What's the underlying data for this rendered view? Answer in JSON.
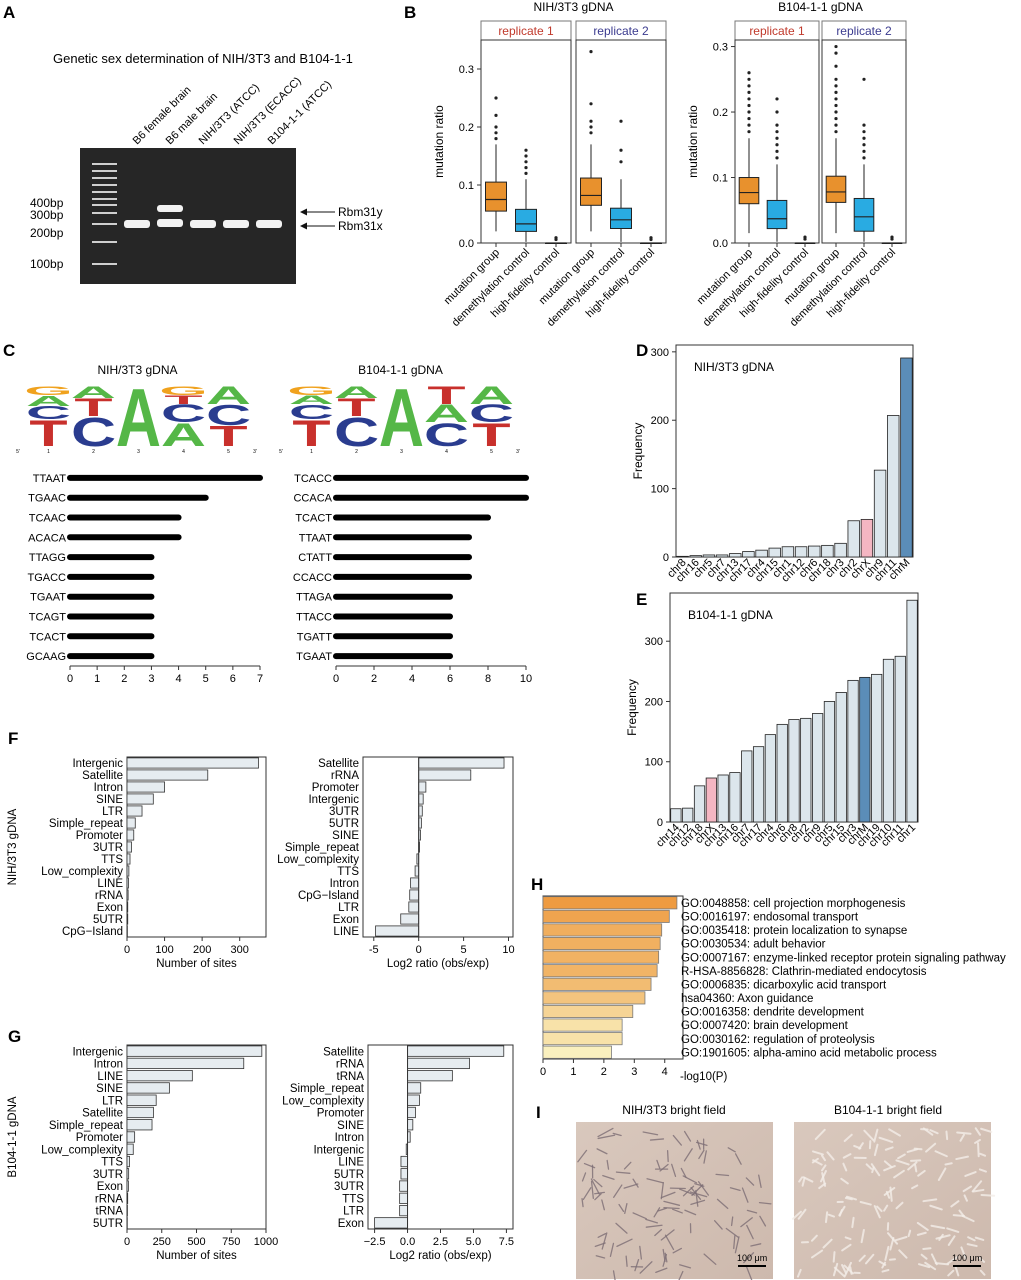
{
  "panels": {
    "A": "A",
    "B": "B",
    "C": "C",
    "D": "D",
    "E": "E",
    "F": "F",
    "G": "G",
    "H": "H",
    "I": "I"
  },
  "gel": {
    "title": "Genetic sex determination of NIH/3T3 and B104-1-1",
    "lanes": [
      "B6 female brain",
      "B6 male brain",
      "NIH/3T3 (ATCC)",
      "NIH/3T3 (ECACC)",
      "B104-1-1 (ATCC)"
    ],
    "ladder": [
      "400bp",
      "300bp",
      "200bp",
      "100bp"
    ],
    "bands": [
      "Rbm31y",
      "Rbm31x"
    ]
  },
  "chart_data": [
    {
      "id": "B1",
      "type": "box",
      "title": "NIH/3T3 gDNA",
      "ylabel": "mutation ratio",
      "ylim": [
        0,
        0.35
      ],
      "yticks": [
        "0.0",
        "0.1",
        "0.2",
        "0.3"
      ],
      "facets": [
        "replicate 1",
        "replicate 2"
      ],
      "facet_colors": [
        "#c0392b",
        "#3b3b8f"
      ],
      "categories": [
        "mutation group",
        "demethylation control",
        "high-fidelity control"
      ],
      "box_colors": [
        "#e8912d",
        "#29abe2",
        "#ffffff"
      ],
      "boxes": [
        [
          {
            "q1": 0.055,
            "med": 0.075,
            "q3": 0.105,
            "lo": 0.02,
            "hi": 0.17,
            "out": [
              0.18,
              0.19,
              0.2,
              0.22,
              0.25
            ]
          },
          {
            "q1": 0.02,
            "med": 0.033,
            "q3": 0.058,
            "lo": 0.002,
            "hi": 0.11,
            "out": [
              0.12,
              0.13,
              0.14,
              0.15,
              0.16
            ]
          },
          {
            "q1": 0.0,
            "med": 0.0,
            "q3": 0.0,
            "lo": 0.0,
            "hi": 0.0,
            "out": [
              0.006,
              0.009
            ]
          }
        ],
        [
          {
            "q1": 0.065,
            "med": 0.082,
            "q3": 0.112,
            "lo": 0.02,
            "hi": 0.17,
            "out": [
              0.19,
              0.2,
              0.21,
              0.24,
              0.33
            ]
          },
          {
            "q1": 0.025,
            "med": 0.04,
            "q3": 0.06,
            "lo": 0.002,
            "hi": 0.11,
            "out": [
              0.14,
              0.16,
              0.21
            ]
          },
          {
            "q1": 0.0,
            "med": 0.0,
            "q3": 0.0,
            "lo": 0.0,
            "hi": 0.0,
            "out": [
              0.006,
              0.009
            ]
          }
        ]
      ]
    },
    {
      "id": "B2",
      "type": "box",
      "title": "B104-1-1 gDNA",
      "ylabel": "mutation ratio",
      "ylim": [
        0,
        0.31
      ],
      "yticks": [
        "0.0",
        "0.1",
        "0.2",
        "0.3"
      ],
      "facets": [
        "replicate 1",
        "replicate 2"
      ],
      "facet_colors": [
        "#c0392b",
        "#3b3b8f"
      ],
      "categories": [
        "mutation group",
        "demethylation control",
        "high-fidelity control"
      ],
      "box_colors": [
        "#e8912d",
        "#29abe2",
        "#ffffff"
      ],
      "boxes": [
        [
          {
            "q1": 0.06,
            "med": 0.077,
            "q3": 0.1,
            "lo": 0.015,
            "hi": 0.16,
            "out": [
              0.17,
              0.18,
              0.19,
              0.2,
              0.21,
              0.22,
              0.23,
              0.24,
              0.25,
              0.26
            ]
          },
          {
            "q1": 0.022,
            "med": 0.037,
            "q3": 0.065,
            "lo": 0.002,
            "hi": 0.12,
            "out": [
              0.13,
              0.14,
              0.15,
              0.16,
              0.17,
              0.18,
              0.2,
              0.22
            ]
          },
          {
            "q1": 0.0,
            "med": 0.0,
            "q3": 0.0,
            "lo": 0.0,
            "hi": 0.0,
            "out": [
              0.006,
              0.009
            ]
          }
        ],
        [
          {
            "q1": 0.062,
            "med": 0.078,
            "q3": 0.102,
            "lo": 0.015,
            "hi": 0.16,
            "out": [
              0.17,
              0.18,
              0.19,
              0.2,
              0.21,
              0.22,
              0.23,
              0.24,
              0.25,
              0.27,
              0.29,
              0.3
            ]
          },
          {
            "q1": 0.018,
            "med": 0.04,
            "q3": 0.068,
            "lo": 0.002,
            "hi": 0.12,
            "out": [
              0.13,
              0.14,
              0.15,
              0.16,
              0.17,
              0.18,
              0.25
            ]
          },
          {
            "q1": 0.0,
            "med": 0.0,
            "q3": 0.0,
            "lo": 0.0,
            "hi": 0.0,
            "out": [
              0.006,
              0.009
            ]
          }
        ]
      ]
    },
    {
      "id": "C1",
      "type": "bar",
      "title": "NIH/3T3 gDNA",
      "orientation": "horizontal",
      "categories": [
        "TTAAT",
        "TGAAC",
        "TCAAC",
        "ACACA",
        "TTAGG",
        "TGACC",
        "TGAAT",
        "TCAGT",
        "TCACT",
        "GCAAG"
      ],
      "values": [
        7,
        5,
        4,
        4,
        3,
        3,
        3,
        3,
        3,
        3
      ],
      "xlim": [
        0,
        7
      ],
      "xticks": [
        0,
        1,
        2,
        3,
        4,
        5,
        6,
        7
      ]
    },
    {
      "id": "C2",
      "type": "bar",
      "title": "B104-1-1 gDNA",
      "orientation": "horizontal",
      "categories": [
        "TCACC",
        "CCACA",
        "TCACT",
        "TTAAT",
        "CTATT",
        "CCACC",
        "TTAGA",
        "TTACC",
        "TGATT",
        "TGAAT"
      ],
      "values": [
        10,
        10,
        8,
        7,
        7,
        7,
        6,
        6,
        6,
        6
      ],
      "xlim": [
        0,
        10
      ],
      "xticks": [
        0,
        2,
        4,
        6,
        8,
        10
      ]
    },
    {
      "id": "D",
      "type": "bar",
      "title": "NIH/3T3 gDNA",
      "ylabel": "Frequency",
      "categories": [
        "chr8",
        "chr16",
        "chr5",
        "chr7",
        "chr13",
        "chr17",
        "chr4",
        "chr15",
        "chr1",
        "chr12",
        "chr6",
        "chr18",
        "chr3",
        "chr2",
        "chrX",
        "chr9",
        "chr11",
        "chrM"
      ],
      "values": [
        1,
        2,
        3,
        3,
        5,
        8,
        10,
        13,
        15,
        15,
        16,
        17,
        20,
        53,
        55,
        127,
        207,
        291
      ],
      "ylim": [
        0,
        310
      ],
      "yticks": [
        0,
        100,
        200,
        300
      ],
      "highlight": {
        "chrX": "#f4b6c2",
        "chrM": "#5b8db8"
      },
      "bar_color": "#dce6ec"
    },
    {
      "id": "E",
      "type": "bar",
      "title": "B104-1-1 gDNA",
      "ylabel": "Frequency",
      "categories": [
        "chr14",
        "chr12",
        "chr18",
        "chrX",
        "chr13",
        "chr16",
        "chr7",
        "chr17",
        "chr4",
        "chr6",
        "chr8",
        "chr2",
        "chr9",
        "chr5",
        "chr15",
        "chr3",
        "chrM",
        "chr19",
        "chr10",
        "chr11",
        "chr1"
      ],
      "values": [
        22,
        23,
        60,
        73,
        78,
        82,
        118,
        125,
        145,
        162,
        170,
        172,
        180,
        200,
        215,
        235,
        240,
        245,
        270,
        275,
        368
      ],
      "ylim": [
        0,
        380
      ],
      "yticks": [
        0,
        100,
        200,
        300
      ],
      "highlight": {
        "chrX": "#f4b6c2",
        "chrM": "#5b8db8"
      },
      "bar_color": "#dce6ec"
    },
    {
      "id": "F1",
      "type": "bar",
      "orientation": "horizontal",
      "xlabel": "Number of sites",
      "side_label": "NIH/3T3 gDNA",
      "categories": [
        "Intergenic",
        "Satellite",
        "Intron",
        "SINE",
        "LTR",
        "Simple_repeat",
        "Promoter",
        "3UTR",
        "TTS",
        "Low_complexity",
        "LINE",
        "rRNA",
        "Exon",
        "5UTR",
        "CpG−Island"
      ],
      "values": [
        350,
        215,
        100,
        70,
        40,
        22,
        18,
        12,
        8,
        5,
        4,
        3,
        2,
        2,
        1
      ],
      "xlim": [
        0,
        370
      ],
      "xticks": [
        0,
        100,
        200,
        300
      ]
    },
    {
      "id": "F2",
      "type": "bar",
      "orientation": "horizontal",
      "xlabel": "Log2 ratio (obs/exp)",
      "categories": [
        "Satellite",
        "rRNA",
        "Promoter",
        "Intergenic",
        "3UTR",
        "5UTR",
        "SINE",
        "Simple_repeat",
        "Low_complexity",
        "TTS",
        "Intron",
        "CpG−Island",
        "LTR",
        "Exon",
        "LINE"
      ],
      "values": [
        9.5,
        5.8,
        0.8,
        0.5,
        0.4,
        0.3,
        0.2,
        0.1,
        -0.2,
        -0.4,
        -0.9,
        -1.0,
        -1.1,
        -2.0,
        -4.8
      ],
      "xlim": [
        -6.2,
        10.5
      ],
      "xticks": [
        "-5",
        "0",
        "5",
        "10"
      ]
    },
    {
      "id": "G1",
      "type": "bar",
      "orientation": "horizontal",
      "xlabel": "Number of sites",
      "side_label": "B104-1-1 gDNA",
      "categories": [
        "Intergenic",
        "Intron",
        "LINE",
        "SINE",
        "LTR",
        "Satellite",
        "Simple_repeat",
        "Promoter",
        "Low_complexity",
        "TTS",
        "3UTR",
        "Exon",
        "rRNA",
        "tRNA",
        "5UTR"
      ],
      "values": [
        970,
        840,
        470,
        305,
        210,
        190,
        180,
        55,
        45,
        18,
        12,
        10,
        5,
        3,
        2
      ],
      "xlim": [
        0,
        1000
      ],
      "xticks": [
        0,
        250,
        500,
        750,
        1000
      ]
    },
    {
      "id": "G2",
      "type": "bar",
      "orientation": "horizontal",
      "xlabel": "Log2 ratio (obs/exp)",
      "categories": [
        "Satellite",
        "rRNA",
        "tRNA",
        "Simple_repeat",
        "Low_complexity",
        "Promoter",
        "SINE",
        "Intron",
        "Intergenic",
        "LINE",
        "5UTR",
        "3UTR",
        "TTS",
        "LTR",
        "Exon"
      ],
      "values": [
        7.3,
        4.7,
        3.4,
        1.0,
        0.9,
        0.6,
        0.4,
        0.2,
        -0.1,
        -0.5,
        -0.5,
        -0.6,
        -0.6,
        -0.6,
        -2.5
      ],
      "xlim": [
        -3.0,
        8.0
      ],
      "xticks": [
        "−2.5",
        "0.0",
        "2.5",
        "5.0",
        "7.5"
      ]
    },
    {
      "id": "H",
      "type": "bar",
      "orientation": "horizontal",
      "xlabel": "-log10(P)",
      "categories": [
        "GO:0048858: cell projection morphogenesis",
        "GO:0016197: endosomal transport",
        "GO:0035418: protein localization to synapse",
        "GO:0030534: adult behavior",
        "GO:0007167: enzyme-linked receptor protein signaling pathway",
        "R-HSA-8856828: Clathrin-mediated endocytosis",
        "GO:0006835: dicarboxylic acid transport",
        "hsa04360: Axon guidance",
        "GO:0016358: dendrite development",
        "GO:0007420: brain development",
        "GO:0030162: regulation of proteolysis",
        "GO:1901605: alpha-amino acid metabolic process"
      ],
      "values": [
        4.4,
        4.15,
        3.9,
        3.85,
        3.8,
        3.75,
        3.55,
        3.35,
        2.95,
        2.6,
        2.6,
        2.25
      ],
      "xlim": [
        0,
        4.6
      ],
      "xticks": [
        0,
        1,
        2,
        3,
        4
      ]
    }
  ],
  "logos": [
    {
      "title": "NIH/3T3 gDNA",
      "positions": [
        [
          [
            "T",
            0.45,
            "#c8302c"
          ],
          [
            "C",
            0.22,
            "#2a3c8f"
          ],
          [
            "A",
            0.18,
            "#55b747"
          ],
          [
            "G",
            0.15,
            "#f0a21e"
          ]
        ],
        [
          [
            "C",
            0.5,
            "#2a3c8f"
          ],
          [
            "T",
            0.3,
            "#c8302c"
          ],
          [
            "A",
            0.2,
            "#55b747"
          ]
        ],
        [
          [
            "A",
            1.0,
            "#55b747"
          ]
        ],
        [
          [
            "A",
            0.4,
            "#55b747"
          ],
          [
            "C",
            0.3,
            "#2a3c8f"
          ],
          [
            "T",
            0.15,
            "#c8302c"
          ],
          [
            "G",
            0.15,
            "#f0a21e"
          ]
        ],
        [
          [
            "T",
            0.35,
            "#c8302c"
          ],
          [
            "C",
            0.35,
            "#2a3c8f"
          ],
          [
            "A",
            0.3,
            "#55b747"
          ]
        ]
      ]
    },
    {
      "title": "B104-1-1 gDNA",
      "positions": [
        [
          [
            "T",
            0.45,
            "#c8302c"
          ],
          [
            "C",
            0.25,
            "#2a3c8f"
          ],
          [
            "A",
            0.15,
            "#55b747"
          ],
          [
            "G",
            0.15,
            "#f0a21e"
          ]
        ],
        [
          [
            "C",
            0.5,
            "#2a3c8f"
          ],
          [
            "T",
            0.3,
            "#c8302c"
          ],
          [
            "A",
            0.2,
            "#55b747"
          ]
        ],
        [
          [
            "A",
            1.0,
            "#55b747"
          ]
        ],
        [
          [
            "C",
            0.4,
            "#2a3c8f"
          ],
          [
            "A",
            0.3,
            "#55b747"
          ],
          [
            "T",
            0.3,
            "#c8302c"
          ]
        ],
        [
          [
            "T",
            0.4,
            "#c8302c"
          ],
          [
            "C",
            0.3,
            "#2a3c8f"
          ],
          [
            "A",
            0.3,
            "#55b747"
          ]
        ]
      ]
    }
  ],
  "logo_ticks": [
    "5'",
    "1",
    "2",
    "3",
    "4",
    "5",
    "3'"
  ],
  "micro": {
    "titles": [
      "NIH/3T3 bright field",
      "B104-1-1 bright field"
    ],
    "scale": "100 μm"
  }
}
